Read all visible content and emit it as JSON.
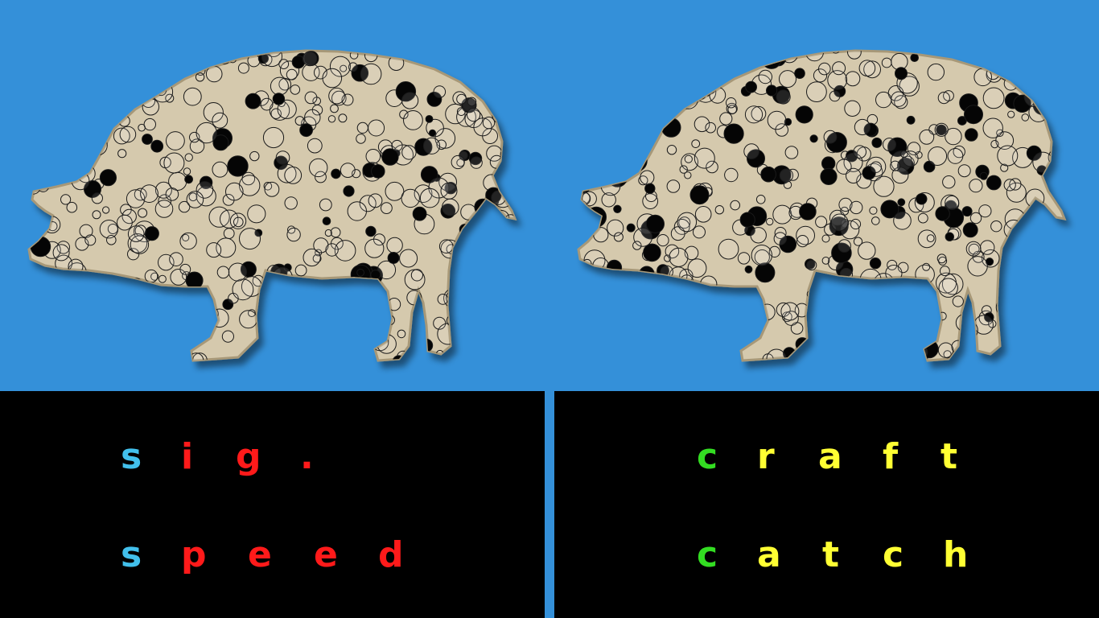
{
  "colors": {
    "background": "#3490d9",
    "panel": "#000000",
    "pig_fill": "#d5c9ad",
    "pig_stroke": "#a79878",
    "spot_dark": "#050505",
    "blue": "#42c0ec",
    "red": "#ff1a1a",
    "green": "#33dd22",
    "yellow": "#ffff33"
  },
  "illustrations": [
    {
      "name": "pig-left",
      "icon": "spotted-pig-illustration"
    },
    {
      "name": "pig-right",
      "icon": "spotted-pig-illustration"
    }
  ],
  "left_panel": {
    "words": [
      {
        "text": "sig.",
        "letters": [
          {
            "char": "s",
            "color": "blue"
          },
          {
            "char": "i",
            "color": "red"
          },
          {
            "char": "g",
            "color": "red"
          },
          {
            "char": ".",
            "color": "red"
          }
        ]
      },
      {
        "text": "speed",
        "letters": [
          {
            "char": "s",
            "color": "blue"
          },
          {
            "char": "p",
            "color": "red"
          },
          {
            "char": "e",
            "color": "red"
          },
          {
            "char": "e",
            "color": "red"
          },
          {
            "char": "d",
            "color": "red"
          }
        ]
      }
    ]
  },
  "right_panel": {
    "words": [
      {
        "text": "craft",
        "letters": [
          {
            "char": "c",
            "color": "green"
          },
          {
            "char": "r",
            "color": "yellow"
          },
          {
            "char": "a",
            "color": "yellow"
          },
          {
            "char": "f",
            "color": "yellow"
          },
          {
            "char": "t",
            "color": "yellow"
          }
        ]
      },
      {
        "text": "catch",
        "letters": [
          {
            "char": "c",
            "color": "green"
          },
          {
            "char": "a",
            "color": "yellow"
          },
          {
            "char": "t",
            "color": "yellow"
          },
          {
            "char": "c",
            "color": "yellow"
          },
          {
            "char": "h",
            "color": "yellow"
          }
        ]
      }
    ]
  }
}
